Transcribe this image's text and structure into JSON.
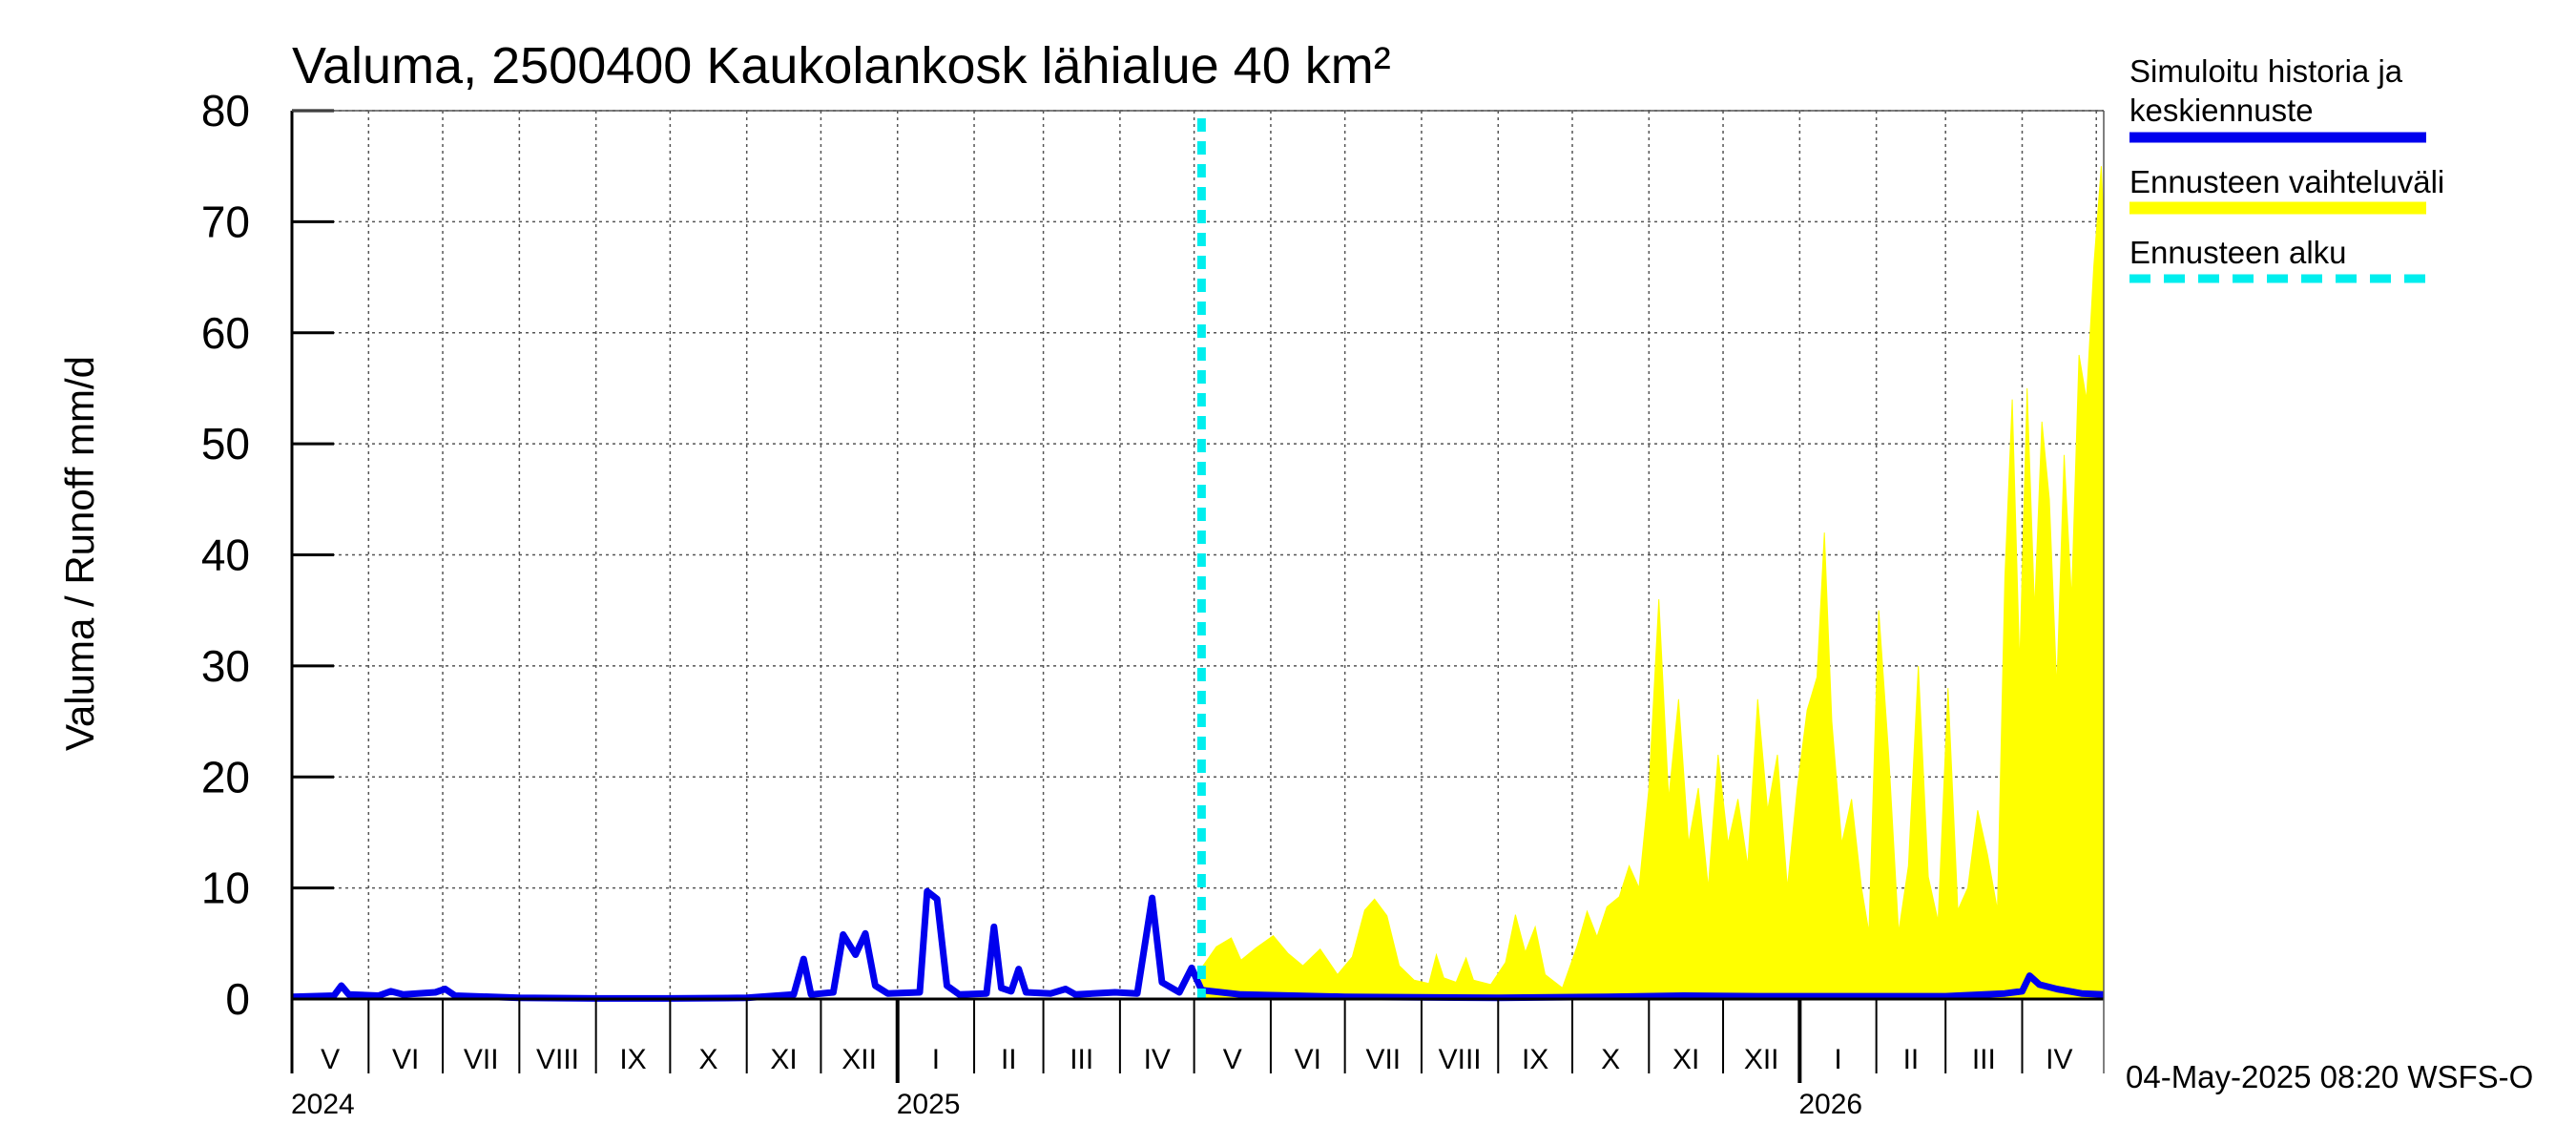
{
  "chart_data": {
    "type": "area",
    "title": "Valuma, 2500400 Kaukolankosk lähialue 40 km²",
    "ylabel": "Valuma / Runoff     mm/d",
    "xlabel": "",
    "ylim": [
      0,
      80
    ],
    "yticks": [
      0,
      10,
      20,
      30,
      40,
      50,
      60,
      70,
      80
    ],
    "x_range": [
      "2024-05-01",
      "2026-05-04"
    ],
    "forecast_start": "2025-05-04",
    "grid": true,
    "months": [
      "V",
      "VI",
      "VII",
      "VIII",
      "IX",
      "X",
      "XI",
      "XII",
      "I",
      "II",
      "III",
      "IV",
      "V",
      "VI",
      "VII",
      "VIII",
      "IX",
      "X",
      "XI",
      "XII",
      "I",
      "II",
      "III",
      "IV"
    ],
    "years": [
      {
        "label": "2024",
        "date": "2024-05-01"
      },
      {
        "label": "2025",
        "date": "2025-01-01"
      },
      {
        "label": "2026",
        "date": "2026-01-01"
      }
    ],
    "legend": {
      "position": "right",
      "entries": [
        {
          "label_line1": "Simuloitu historia ja",
          "label_line2": "keskiennuste",
          "color": "#0000ee",
          "style": "solid"
        },
        {
          "label_line1": "Ennusteen vaihteluväli",
          "label_line2": "",
          "color": "#ffff00",
          "style": "solid"
        },
        {
          "label_line1": "Ennusteen alku",
          "label_line2": "",
          "color": "#00eeee",
          "style": "dashed"
        }
      ]
    },
    "series": [
      {
        "name": "Simuloitu historia ja keskiennuste",
        "color": "#0000ee",
        "points": [
          [
            "2024-05-01",
            0.2
          ],
          [
            "2024-05-18",
            0.3
          ],
          [
            "2024-05-21",
            1.2
          ],
          [
            "2024-05-24",
            0.4
          ],
          [
            "2024-06-05",
            0.3
          ],
          [
            "2024-06-10",
            0.7
          ],
          [
            "2024-06-15",
            0.4
          ],
          [
            "2024-06-28",
            0.6
          ],
          [
            "2024-07-02",
            0.9
          ],
          [
            "2024-07-06",
            0.3
          ],
          [
            "2024-08-01",
            0.1
          ],
          [
            "2024-09-01",
            0.05
          ],
          [
            "2024-10-01",
            0.05
          ],
          [
            "2024-11-01",
            0.1
          ],
          [
            "2024-11-20",
            0.4
          ],
          [
            "2024-11-24",
            3.6
          ],
          [
            "2024-11-27",
            0.4
          ],
          [
            "2024-12-06",
            0.6
          ],
          [
            "2024-12-10",
            5.8
          ],
          [
            "2024-12-15",
            4.0
          ],
          [
            "2024-12-19",
            5.9
          ],
          [
            "2024-12-23",
            1.2
          ],
          [
            "2024-12-28",
            0.5
          ],
          [
            "2025-01-10",
            0.6
          ],
          [
            "2025-01-13",
            9.7
          ],
          [
            "2025-01-17",
            9.0
          ],
          [
            "2025-01-21",
            1.2
          ],
          [
            "2025-01-26",
            0.4
          ],
          [
            "2025-02-06",
            0.5
          ],
          [
            "2025-02-09",
            6.5
          ],
          [
            "2025-02-12",
            1.0
          ],
          [
            "2025-02-16",
            0.7
          ],
          [
            "2025-02-19",
            2.7
          ],
          [
            "2025-02-22",
            0.6
          ],
          [
            "2025-03-04",
            0.5
          ],
          [
            "2025-03-10",
            0.9
          ],
          [
            "2025-03-14",
            0.4
          ],
          [
            "2025-03-30",
            0.6
          ],
          [
            "2025-04-08",
            0.5
          ],
          [
            "2025-04-14",
            9.1
          ],
          [
            "2025-04-18",
            1.5
          ],
          [
            "2025-04-25",
            0.6
          ],
          [
            "2025-04-30",
            2.8
          ],
          [
            "2025-05-04",
            0.8
          ],
          [
            "2025-05-20",
            0.4
          ],
          [
            "2025-07-01",
            0.2
          ],
          [
            "2025-09-01",
            0.1
          ],
          [
            "2025-10-15",
            0.2
          ],
          [
            "2025-11-15",
            0.3
          ],
          [
            "2025-12-15",
            0.25
          ],
          [
            "2026-01-15",
            0.25
          ],
          [
            "2026-03-01",
            0.25
          ],
          [
            "2026-03-25",
            0.5
          ],
          [
            "2026-04-01",
            0.7
          ],
          [
            "2026-04-04",
            2.1
          ],
          [
            "2026-04-08",
            1.3
          ],
          [
            "2026-04-15",
            0.9
          ],
          [
            "2026-04-25",
            0.5
          ],
          [
            "2026-05-04",
            0.4
          ]
        ]
      },
      {
        "name": "Ennusteen vaihteluväli",
        "color": "#ffff00",
        "points": [
          [
            "2025-05-04",
            2.8
          ],
          [
            "2025-05-10",
            4.7
          ],
          [
            "2025-05-16",
            5.5
          ],
          [
            "2025-05-20",
            3.5
          ],
          [
            "2025-05-26",
            4.6
          ],
          [
            "2025-06-02",
            5.7
          ],
          [
            "2025-06-08",
            4.1
          ],
          [
            "2025-06-14",
            3.0
          ],
          [
            "2025-06-21",
            4.5
          ],
          [
            "2025-06-28",
            2.2
          ],
          [
            "2025-07-04",
            3.8
          ],
          [
            "2025-07-09",
            8.0
          ],
          [
            "2025-07-13",
            9.0
          ],
          [
            "2025-07-18",
            7.5
          ],
          [
            "2025-07-23",
            3.0
          ],
          [
            "2025-07-29",
            1.7
          ],
          [
            "2025-08-04",
            1.4
          ],
          [
            "2025-08-07",
            4.0
          ],
          [
            "2025-08-10",
            1.9
          ],
          [
            "2025-08-15",
            1.5
          ],
          [
            "2025-08-19",
            3.7
          ],
          [
            "2025-08-22",
            1.7
          ],
          [
            "2025-08-29",
            1.3
          ],
          [
            "2025-09-04",
            3.3
          ],
          [
            "2025-09-08",
            7.6
          ],
          [
            "2025-09-12",
            4.2
          ],
          [
            "2025-09-16",
            6.5
          ],
          [
            "2025-09-20",
            2.2
          ],
          [
            "2025-09-27",
            1.0
          ],
          [
            "2025-10-03",
            4.8
          ],
          [
            "2025-10-07",
            7.9
          ],
          [
            "2025-10-11",
            5.6
          ],
          [
            "2025-10-15",
            8.3
          ],
          [
            "2025-10-20",
            9.2
          ],
          [
            "2025-10-24",
            12.0
          ],
          [
            "2025-10-28",
            10.0
          ],
          [
            "2025-11-01",
            19.0
          ],
          [
            "2025-11-05",
            36.0
          ],
          [
            "2025-11-09",
            18.0
          ],
          [
            "2025-11-13",
            27.0
          ],
          [
            "2025-11-17",
            14.0
          ],
          [
            "2025-11-21",
            19.0
          ],
          [
            "2025-11-25",
            10.0
          ],
          [
            "2025-11-29",
            22.0
          ],
          [
            "2025-12-03",
            14.0
          ],
          [
            "2025-12-07",
            18.0
          ],
          [
            "2025-12-11",
            12.0
          ],
          [
            "2025-12-15",
            27.0
          ],
          [
            "2025-12-19",
            17.0
          ],
          [
            "2025-12-23",
            22.0
          ],
          [
            "2025-12-27",
            10.0
          ],
          [
            "2025-12-31",
            19.0
          ],
          [
            "2026-01-04",
            26.0
          ],
          [
            "2026-01-08",
            29.0
          ],
          [
            "2026-01-11",
            42.0
          ],
          [
            "2026-01-14",
            25.0
          ],
          [
            "2026-01-18",
            14.0
          ],
          [
            "2026-01-22",
            18.0
          ],
          [
            "2026-01-26",
            10.0
          ],
          [
            "2026-01-29",
            6.0
          ],
          [
            "2026-02-02",
            35.0
          ],
          [
            "2026-02-06",
            22.0
          ],
          [
            "2026-02-10",
            6.0
          ],
          [
            "2026-02-14",
            12.0
          ],
          [
            "2026-02-18",
            30.0
          ],
          [
            "2026-02-22",
            11.0
          ],
          [
            "2026-02-26",
            7.0
          ],
          [
            "2026-03-02",
            28.0
          ],
          [
            "2026-03-06",
            8.0
          ],
          [
            "2026-03-10",
            10.0
          ],
          [
            "2026-03-14",
            17.0
          ],
          [
            "2026-03-18",
            13.0
          ],
          [
            "2026-03-22",
            8.0
          ],
          [
            "2026-03-25",
            38.0
          ],
          [
            "2026-03-28",
            54.0
          ],
          [
            "2026-03-31",
            30.0
          ],
          [
            "2026-04-03",
            55.0
          ],
          [
            "2026-04-06",
            35.0
          ],
          [
            "2026-04-09",
            52.0
          ],
          [
            "2026-04-12",
            45.0
          ],
          [
            "2026-04-15",
            28.0
          ],
          [
            "2026-04-18",
            49.0
          ],
          [
            "2026-04-21",
            36.0
          ],
          [
            "2026-04-24",
            58.0
          ],
          [
            "2026-04-27",
            54.0
          ],
          [
            "2026-04-30",
            66.0
          ],
          [
            "2026-05-03",
            75.0
          ],
          [
            "2026-05-04",
            70.0
          ]
        ]
      }
    ]
  },
  "footer": "04-May-2025 08:20 WSFS-O"
}
